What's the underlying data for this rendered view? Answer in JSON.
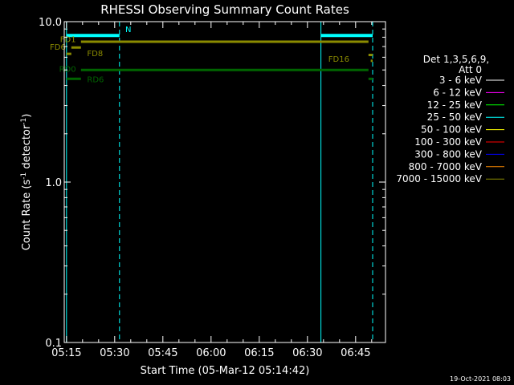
{
  "chart_data": {
    "type": "line",
    "title": "RHESSI Observing Summary Count Rates",
    "xlabel": "Start Time (05-Mar-12 05:14:42)",
    "ylabel_main": "Count Rate (s",
    "ylabel_sup1": "-1",
    "ylabel_mid": " detector",
    "ylabel_sup2": "-1",
    "ylabel_end": ")",
    "yscale": "log",
    "ylim": [
      0.1,
      10.0
    ],
    "xlim_minutes": [
      -0.7,
      99.3
    ],
    "x_ticks": [
      {
        "label": "05:15",
        "minutes": 0
      },
      {
        "label": "05:30",
        "minutes": 15
      },
      {
        "label": "05:45",
        "minutes": 30
      },
      {
        "label": "06:00",
        "minutes": 45
      },
      {
        "label": "06:15",
        "minutes": 60
      },
      {
        "label": "06:30",
        "minutes": 75
      },
      {
        "label": "06:45",
        "minutes": 90
      }
    ],
    "y_ticks": [
      {
        "label": "0.1",
        "value": 0.1
      },
      {
        "label": "1.0",
        "value": 1.0
      },
      {
        "label": "10.0",
        "value": 10.0
      }
    ],
    "legend": {
      "header": [
        "Det 1,3,5,6,9,",
        "Att 0"
      ],
      "placement": "right",
      "entries": [
        {
          "label": "3 - 6 keV",
          "color": "#ffffff"
        },
        {
          "label": "6 - 12 keV",
          "color": "#ff00ff"
        },
        {
          "label": "12 - 25 keV",
          "color": "#00ff00"
        },
        {
          "label": "25 - 50 keV",
          "color": "#00ffff"
        },
        {
          "label": "50 - 100 keV",
          "color": "#ffff00"
        },
        {
          "label": "100 - 300 keV",
          "color": "#ff0000"
        },
        {
          "label": "300 - 800 keV",
          "color": "#0000ff"
        },
        {
          "label": "800 - 7000 keV",
          "color": "#ff8c00"
        },
        {
          "label": "7000 - 15000 keV",
          "color": "#8b8b00"
        }
      ]
    },
    "segments": [
      {
        "name": "night-top",
        "color": "#00ffff",
        "y": 8.2,
        "x": [
          0,
          16.5
        ],
        "width": 4
      },
      {
        "name": "night-top",
        "color": "#00ffff",
        "y": 8.2,
        "x": [
          79.2,
          95.3
        ],
        "width": 4
      },
      {
        "name": "flag-fd1",
        "color": "#8b8b00",
        "y": 7.5,
        "x": [
          4.5,
          94
        ],
        "width": 3
      },
      {
        "name": "flag-fd6",
        "color": "#8b8b00",
        "y": 6.9,
        "x": [
          1.5,
          4.5
        ],
        "width": 3
      },
      {
        "name": "flag-fd8",
        "color": "#8b8b00",
        "y": 6.3,
        "x": [
          0,
          1.5
        ],
        "width": 3
      },
      {
        "name": "flag-fd16",
        "color": "#8b8b00",
        "y": 6.2,
        "x": [
          94,
          95.3
        ],
        "width": 3
      },
      {
        "name": "flag-fd16b",
        "color": "#8b8b00",
        "y": 5.7,
        "x": [
          94.7,
          95.3
        ],
        "width": 3
      },
      {
        "name": "flag-rd0",
        "color": "#006400",
        "y": 5.0,
        "x": [
          4.5,
          94
        ],
        "width": 3
      },
      {
        "name": "flag-rd6",
        "color": "#006400",
        "y": 4.4,
        "x": [
          0,
          4.5
        ],
        "width": 3
      },
      {
        "name": "flag-rd6b",
        "color": "#006400",
        "y": 4.4,
        "x": [
          94,
          95.3
        ],
        "width": 3
      }
    ],
    "vlines": [
      {
        "minutes": 0,
        "color": "#00ffff",
        "dash": false
      },
      {
        "minutes": 16.5,
        "color": "#00ffff",
        "dash": true
      },
      {
        "minutes": 79.2,
        "color": "#00ffff",
        "dash": false
      },
      {
        "minutes": 95.3,
        "color": "#00ffff",
        "dash": true
      }
    ],
    "annotations": [
      {
        "text": "N",
        "color": "#00ffff",
        "minutes": 18.3,
        "y": 9.0
      },
      {
        "text": "FD1",
        "color": "#8b8b00",
        "minutes": -2.0,
        "y": 7.8
      },
      {
        "text": "FD6",
        "color": "#8b8b00",
        "minutes": -5.2,
        "y": 7.0
      },
      {
        "text": "FD8",
        "color": "#8b8b00",
        "minutes": 6.4,
        "y": 6.4
      },
      {
        "text": "FD16",
        "color": "#8b8b00",
        "minutes": 81.5,
        "y": 5.9
      },
      {
        "text": "RD0",
        "color": "#006400",
        "minutes": -2.3,
        "y": 5.1
      },
      {
        "text": "RD6",
        "color": "#006400",
        "minutes": 6.4,
        "y": 4.4
      }
    ]
  },
  "footer_timestamp": "19-Oct-2021 08:03"
}
